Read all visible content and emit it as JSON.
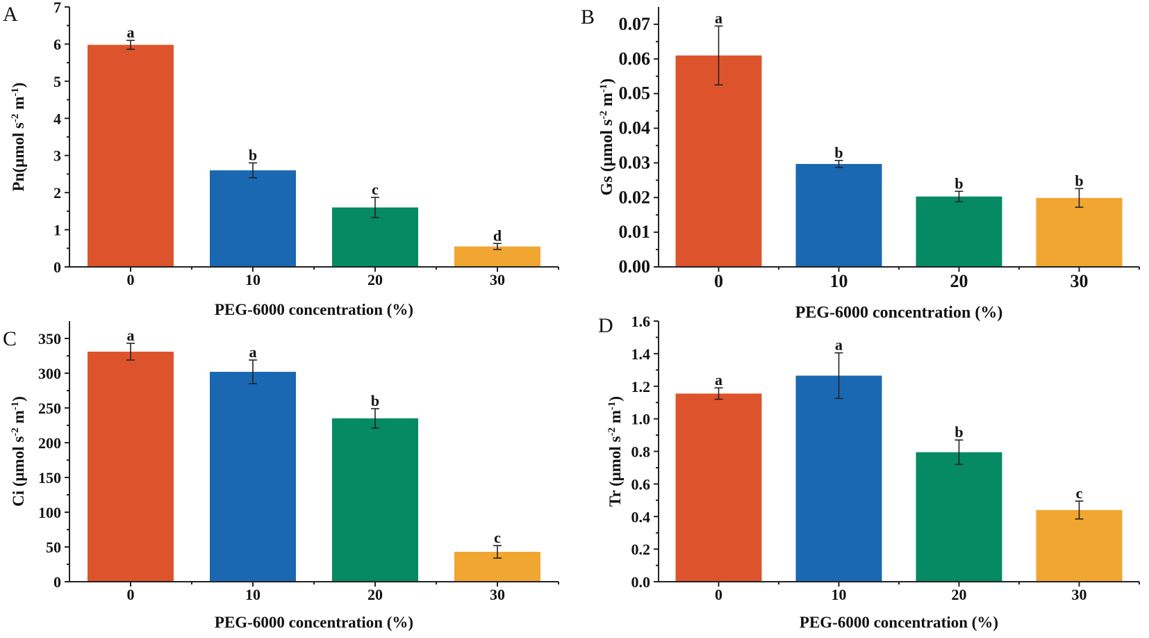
{
  "colors": [
    "#dd542c",
    "#1b68b2",
    "#058a64",
    "#f1a632"
  ],
  "chart_data": [
    {
      "type": "bar",
      "panel": "A",
      "categories": [
        "0",
        "10",
        "20",
        "30"
      ],
      "values": [
        5.98,
        2.6,
        1.6,
        0.55
      ],
      "errors": [
        0.12,
        0.2,
        0.27,
        0.08
      ],
      "significance": [
        "a",
        "b",
        "c",
        "d"
      ],
      "ylabel": "Pn(μmol s-2 m-1)",
      "ylabel_main": "Pn(μmol s",
      "ylabel_sup1": "-2",
      "ylabel_mid": " m",
      "ylabel_sup2": "-1",
      "ylabel_end": ")",
      "xlabel": "PEG-6000 concentration (%)",
      "ylim": [
        0,
        7
      ],
      "yticks": [
        "0",
        "1",
        "2",
        "3",
        "4",
        "5",
        "6",
        "7"
      ],
      "ytick_values": [
        0,
        1,
        2,
        3,
        4,
        5,
        6,
        7
      ]
    },
    {
      "type": "bar",
      "panel": "B",
      "categories": [
        "0",
        "10",
        "20",
        "30"
      ],
      "values": [
        0.061,
        0.0297,
        0.0203,
        0.0199
      ],
      "errors": [
        0.0085,
        0.001,
        0.0015,
        0.0027
      ],
      "significance": [
        "a",
        "b",
        "b",
        "b"
      ],
      "ylabel": "Gs (μmol s-2 m-1)",
      "ylabel_main": "Gs (μmol s",
      "ylabel_sup1": "-2",
      "ylabel_mid": " m",
      "ylabel_sup2": "-1",
      "ylabel_end": ")",
      "xlabel": "PEG-6000 concentration (%)",
      "ylim": [
        0,
        0.075
      ],
      "yticks": [
        "0.00",
        "0.01",
        "0.02",
        "0.03",
        "0.04",
        "0.05",
        "0.06",
        "0.07"
      ],
      "ytick_values": [
        0,
        0.01,
        0.02,
        0.03,
        0.04,
        0.05,
        0.06,
        0.07
      ]
    },
    {
      "type": "bar",
      "panel": "C",
      "categories": [
        "0",
        "10",
        "20",
        "30"
      ],
      "values": [
        331,
        302,
        235,
        43
      ],
      "errors": [
        12,
        17,
        14,
        9
      ],
      "significance": [
        "a",
        "a",
        "b",
        "c"
      ],
      "ylabel": "Ci (μmol s-2 m-1)",
      "ylabel_main": "Ci (μmol s",
      "ylabel_sup1": "-2",
      "ylabel_mid": " m",
      "ylabel_sup2": "-1",
      "ylabel_end": ")",
      "xlabel": "PEG-6000 concentration (%)",
      "ylim": [
        0,
        375
      ],
      "yticks": [
        "0",
        "50",
        "100",
        "150",
        "200",
        "250",
        "300",
        "350"
      ],
      "ytick_values": [
        0,
        50,
        100,
        150,
        200,
        250,
        300,
        350
      ]
    },
    {
      "type": "bar",
      "panel": "D",
      "categories": [
        "0",
        "10",
        "20",
        "30"
      ],
      "values": [
        1.155,
        1.265,
        0.795,
        0.44
      ],
      "errors": [
        0.035,
        0.14,
        0.075,
        0.055
      ],
      "significance": [
        "a",
        "a",
        "b",
        "c"
      ],
      "ylabel": "Tr (μmol s-2 m-1)",
      "ylabel_main": "Tr (μmol s",
      "ylabel_sup1": "-2",
      "ylabel_mid": " m",
      "ylabel_sup2": "-1",
      "ylabel_end": ")",
      "xlabel": "PEG-6000 concentration (%)",
      "ylim": [
        0,
        1.6
      ],
      "yticks": [
        "0.0",
        "0.2",
        "0.4",
        "0.6",
        "0.8",
        "1.0",
        "1.2",
        "1.4",
        "1.6"
      ],
      "ytick_values": [
        0,
        0.2,
        0.4,
        0.6,
        0.8,
        1.0,
        1.2,
        1.4,
        1.6
      ]
    }
  ]
}
